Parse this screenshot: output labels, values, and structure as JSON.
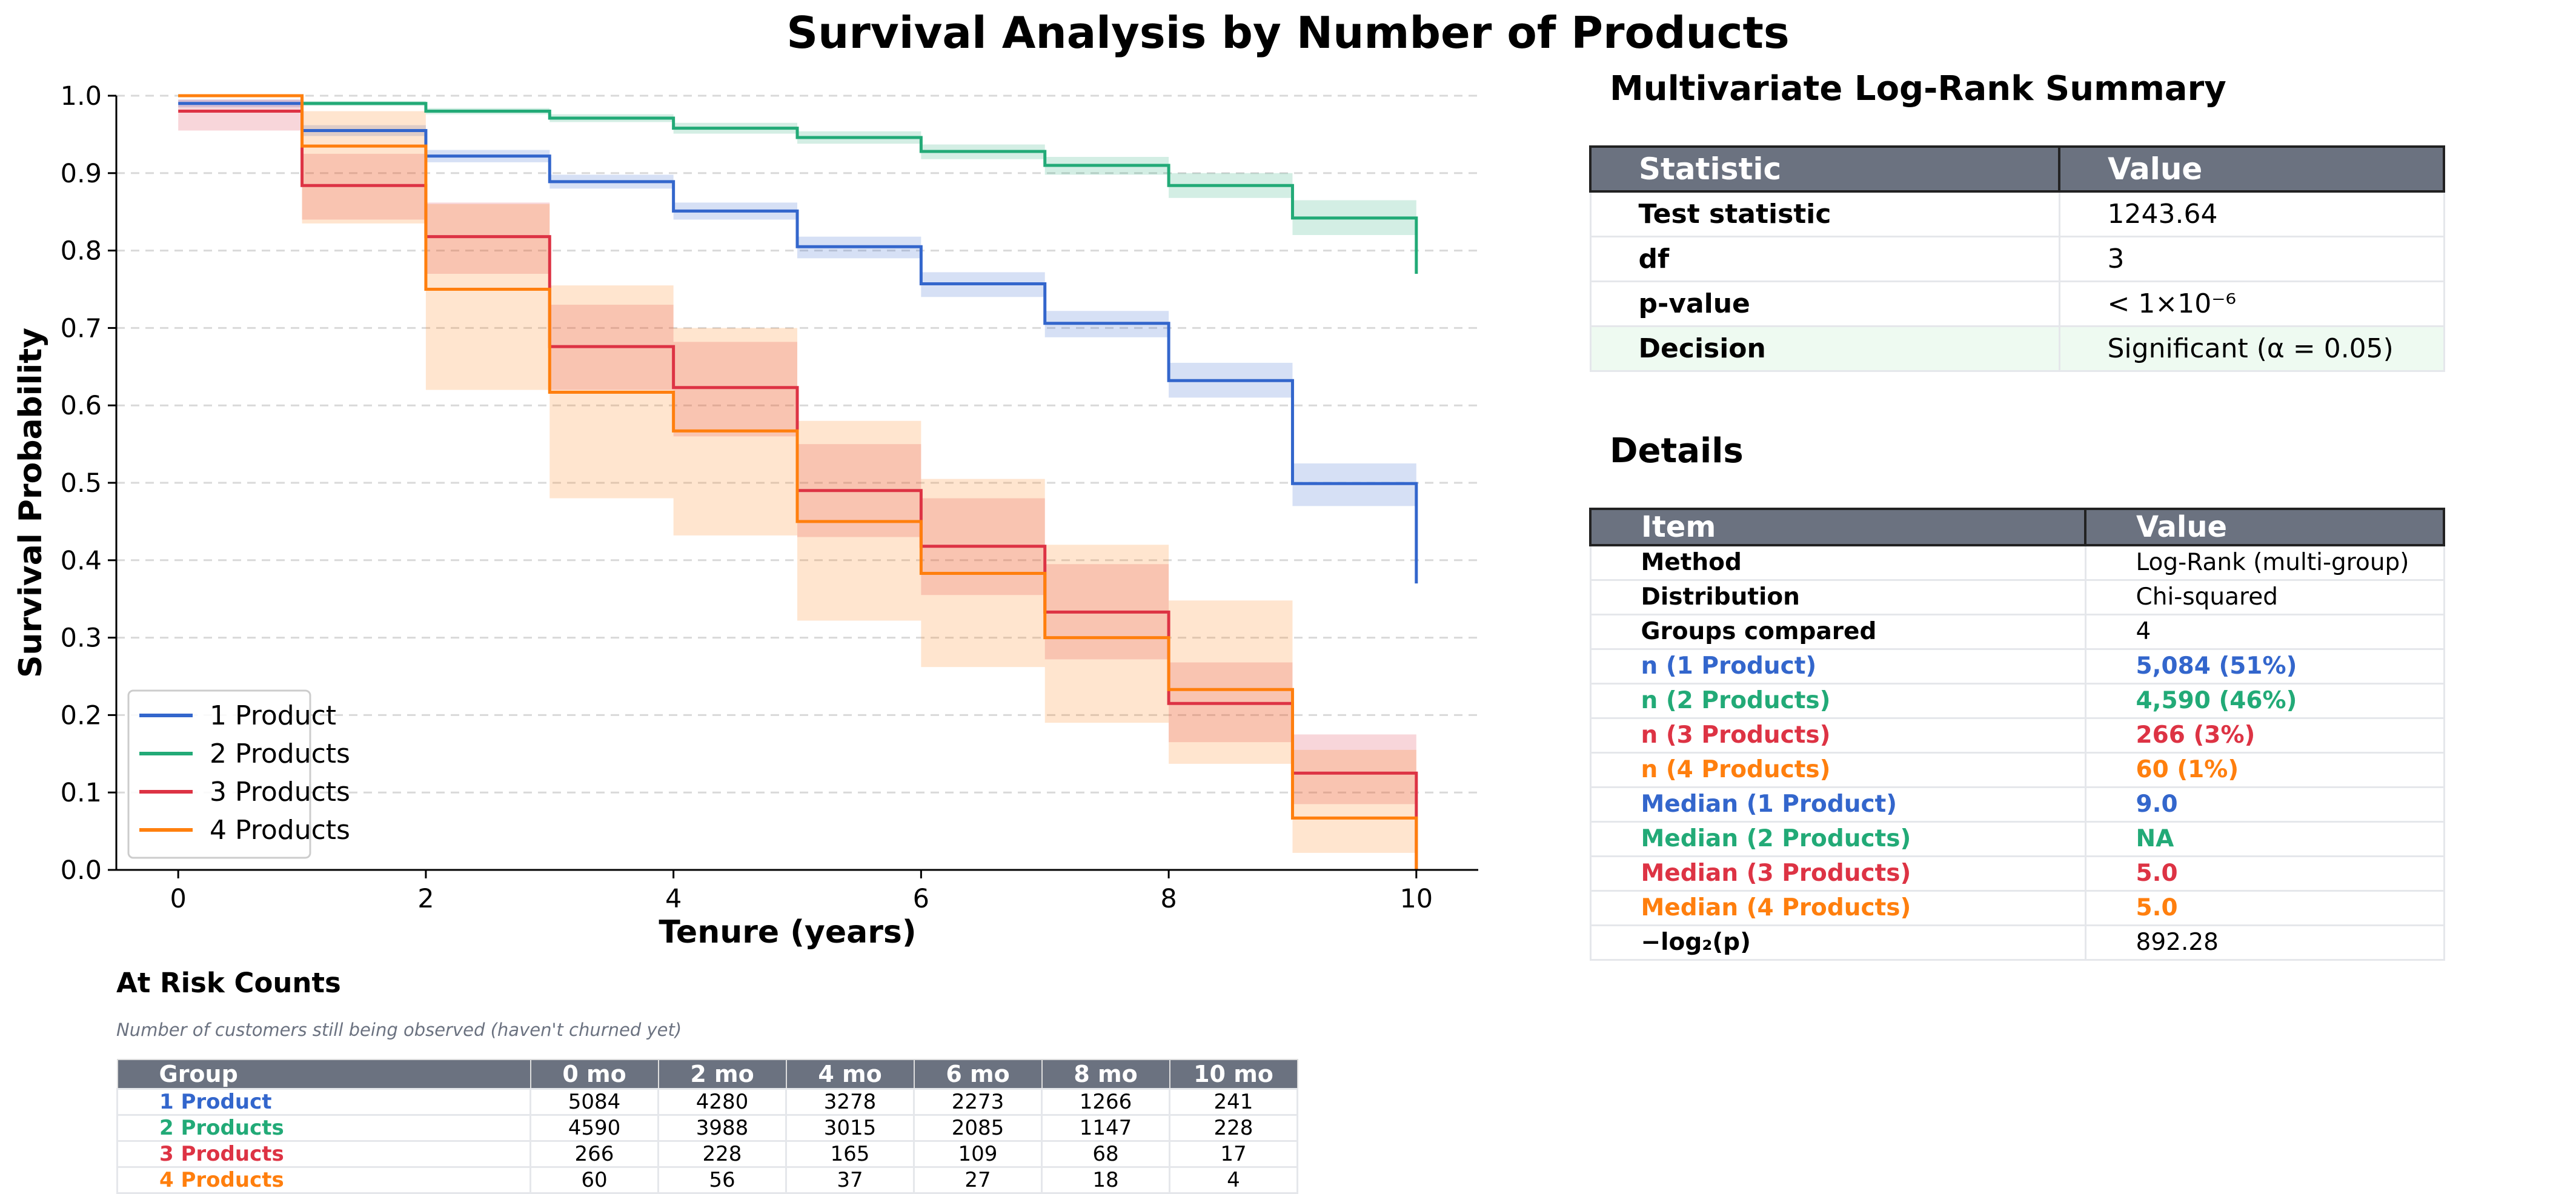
{
  "title": "Survival Analysis by Number of Products",
  "colors": {
    "1 Product": "#3366cc",
    "2 Products": "#22aa77",
    "3 Products": "#dd3344",
    "4 Products": "#ff7f0e",
    "table_header": "#6b7280",
    "highlight_row": "#eefaf1"
  },
  "chart_data": {
    "type": "line",
    "step": true,
    "xlabel": "Tenure (years)",
    "ylabel": "Survival Probability",
    "xlim": [
      -0.5,
      10.5
    ],
    "ylim": [
      0.0,
      1.0
    ],
    "xticks": [
      "0",
      "2",
      "4",
      "6",
      "8",
      "10"
    ],
    "yticks": [
      "0.0",
      "0.1",
      "0.2",
      "0.3",
      "0.4",
      "0.5",
      "0.6",
      "0.7",
      "0.8",
      "0.9",
      "1.0"
    ],
    "grid": "y dashed",
    "legend_position": "lower-left",
    "series": [
      {
        "name": "1 Product",
        "x": [
          0,
          1,
          2,
          3,
          4,
          5,
          6,
          7,
          8,
          9,
          10
        ],
        "y": [
          0.99,
          0.955,
          0.922,
          0.889,
          0.851,
          0.805,
          0.757,
          0.706,
          0.632,
          0.499,
          0.37
        ],
        "ci_lower": [
          0.985,
          0.948,
          0.914,
          0.88,
          0.84,
          0.79,
          0.74,
          0.688,
          0.61,
          0.47,
          0.34
        ],
        "ci_upper": [
          0.995,
          0.962,
          0.93,
          0.898,
          0.862,
          0.818,
          0.772,
          0.722,
          0.655,
          0.525,
          0.39
        ]
      },
      {
        "name": "2 Products",
        "x": [
          0,
          1,
          2,
          3,
          4,
          5,
          6,
          7,
          8,
          9,
          10
        ],
        "y": [
          1.0,
          0.99,
          0.98,
          0.971,
          0.958,
          0.946,
          0.928,
          0.91,
          0.884,
          0.842,
          0.77
        ],
        "ci_lower": [
          0.998,
          0.987,
          0.976,
          0.966,
          0.951,
          0.938,
          0.918,
          0.898,
          0.868,
          0.82,
          0.735
        ],
        "ci_upper": [
          1.0,
          0.993,
          0.984,
          0.976,
          0.965,
          0.954,
          0.937,
          0.921,
          0.9,
          0.865,
          0.8
        ]
      },
      {
        "name": "3 Products",
        "x": [
          0,
          1,
          2,
          3,
          4,
          5,
          6,
          7,
          8,
          9,
          10
        ],
        "y": [
          0.98,
          0.884,
          0.818,
          0.676,
          0.623,
          0.49,
          0.418,
          0.333,
          0.215,
          0.125,
          0.0
        ],
        "ci_lower": [
          0.955,
          0.84,
          0.77,
          0.62,
          0.56,
          0.43,
          0.355,
          0.272,
          0.165,
          0.085,
          0.0
        ],
        "ci_upper": [
          0.995,
          0.925,
          0.862,
          0.73,
          0.682,
          0.55,
          0.48,
          0.395,
          0.268,
          0.175,
          0.0
        ]
      },
      {
        "name": "4 Products",
        "x": [
          0,
          1,
          2,
          3,
          4,
          5,
          6,
          7,
          8,
          9,
          10
        ],
        "y": [
          1.0,
          0.935,
          0.75,
          0.617,
          0.567,
          0.45,
          0.383,
          0.3,
          0.233,
          0.067,
          0.0
        ],
        "ci_lower": [
          1.0,
          0.835,
          0.62,
          0.48,
          0.432,
          0.322,
          0.262,
          0.19,
          0.137,
          0.022,
          0.0
        ],
        "ci_upper": [
          1.0,
          0.98,
          0.86,
          0.755,
          0.7,
          0.58,
          0.505,
          0.42,
          0.348,
          0.155,
          0.0
        ]
      }
    ]
  },
  "summary": {
    "title": "Multivariate Log-Rank Summary",
    "headers": [
      "Statistic",
      "Value"
    ],
    "rows": [
      {
        "label": "Test statistic",
        "value": "1243.64"
      },
      {
        "label": "df",
        "value": "3"
      },
      {
        "label": "p-value",
        "value": "< 1×10⁻⁶"
      },
      {
        "label": "Decision",
        "value": "Significant (α = 0.05)"
      }
    ]
  },
  "details": {
    "title": "Details",
    "headers": [
      "Item",
      "Value"
    ],
    "rows": [
      {
        "label": "Method",
        "value": "Log-Rank (multi-group)",
        "group": ""
      },
      {
        "label": "Distribution",
        "value": "Chi-squared",
        "group": ""
      },
      {
        "label": "Groups compared",
        "value": "4",
        "group": ""
      },
      {
        "label": "n (1 Product)",
        "value": "5,084 (51%)",
        "group": "1 Product"
      },
      {
        "label": "n (2 Products)",
        "value": "4,590 (46%)",
        "group": "2 Products"
      },
      {
        "label": "n (3 Products)",
        "value": "266 (3%)",
        "group": "3 Products"
      },
      {
        "label": "n (4 Products)",
        "value": "60 (1%)",
        "group": "4 Products"
      },
      {
        "label": "Median (1 Product)",
        "value": "9.0",
        "group": "1 Product"
      },
      {
        "label": "Median (2 Products)",
        "value": "NA",
        "group": "2 Products"
      },
      {
        "label": "Median (3 Products)",
        "value": "5.0",
        "group": "3 Products"
      },
      {
        "label": "Median (4 Products)",
        "value": "5.0",
        "group": "4 Products"
      },
      {
        "label": "−log₂(p)",
        "value": "892.28",
        "group": ""
      }
    ]
  },
  "at_risk": {
    "title": "At Risk Counts",
    "subtitle": "Number of customers still being observed (haven't churned yet)",
    "headers": [
      "Group",
      "0 mo",
      "2 mo",
      "4 mo",
      "6 mo",
      "8 mo",
      "10 mo"
    ],
    "rows": [
      {
        "group": "1 Product",
        "counts": [
          "5084",
          "4280",
          "3278",
          "2273",
          "1266",
          "241"
        ]
      },
      {
        "group": "2 Products",
        "counts": [
          "4590",
          "3988",
          "3015",
          "2085",
          "1147",
          "228"
        ]
      },
      {
        "group": "3 Products",
        "counts": [
          "266",
          "228",
          "165",
          "109",
          "68",
          "17"
        ]
      },
      {
        "group": "4 Products",
        "counts": [
          "60",
          "56",
          "37",
          "27",
          "18",
          "4"
        ]
      }
    ]
  }
}
